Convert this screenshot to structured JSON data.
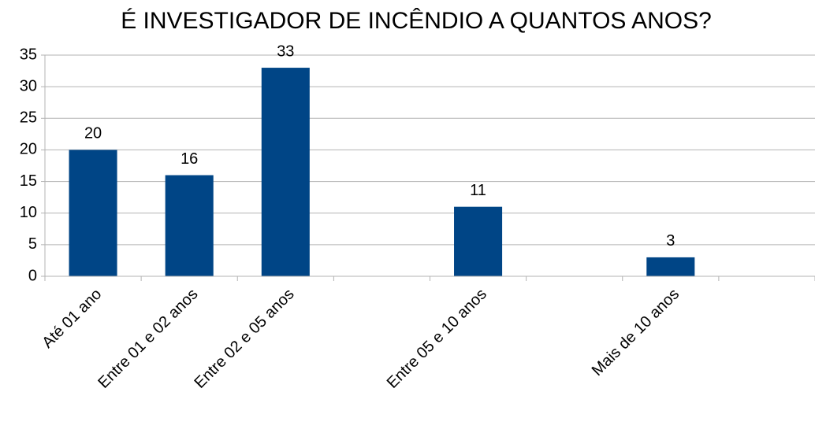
{
  "chart_data": {
    "type": "bar",
    "title": "É INVESTIGADOR DE INCÊNDIO A QUANTOS ANOS?",
    "categories": [
      "Até 01 ano",
      "Entre 01 e 02 anos",
      "Entre 02 e 05 anos",
      null,
      "Entre 05 e 10 anos",
      null,
      "Mais de 10 anos",
      null
    ],
    "values": [
      20,
      16,
      33,
      null,
      11,
      null,
      3,
      null
    ],
    "color": "#004586",
    "ylim": [
      0,
      35
    ],
    "yticks": [
      0,
      5,
      10,
      15,
      20,
      25,
      30,
      35
    ],
    "grid": true
  }
}
